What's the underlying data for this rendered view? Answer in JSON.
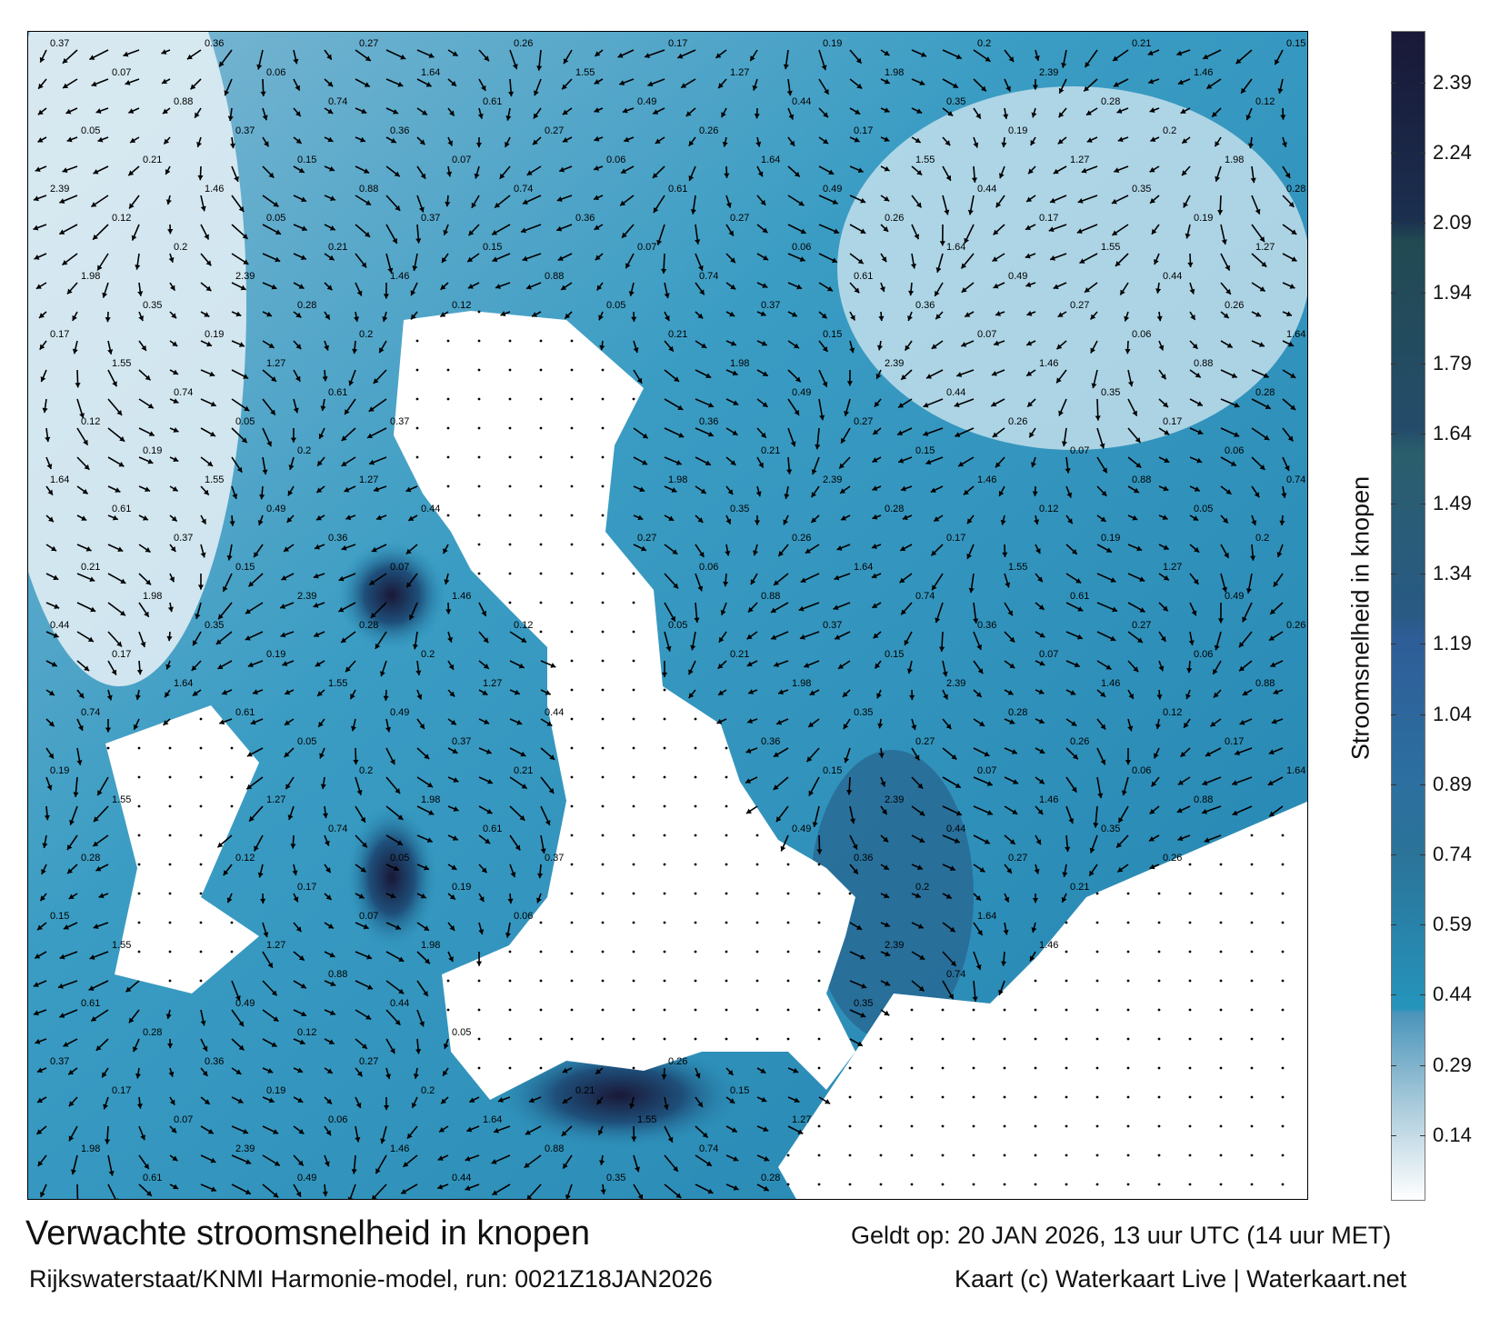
{
  "map": {
    "variable": "stroomsnelheid",
    "unit": "knopen",
    "colors": {
      "land": "#ffffff",
      "low": "#f2f7fa",
      "mid": "#2a90b8",
      "high": "#1a1838"
    },
    "sample_labels": [
      "0.37",
      "0.36",
      "0.27",
      "0.26",
      "0.17",
      "0.19",
      "0.2",
      "0.21",
      "0.15",
      "0.07",
      "0.06",
      "1.64",
      "1.55",
      "1.27",
      "1.98",
      "2.39",
      "1.46",
      "0.88",
      "0.74",
      "0.61",
      "0.49",
      "0.44",
      "0.35",
      "0.28",
      "0.12",
      "0.05"
    ]
  },
  "colorbar": {
    "title": "Stroomsnelheid in knopen",
    "ticks": [
      "2.39",
      "2.24",
      "2.09",
      "1.94",
      "1.79",
      "1.64",
      "1.49",
      "1.34",
      "1.19",
      "1.04",
      "0.89",
      "0.74",
      "0.59",
      "0.44",
      "0.29",
      "0.14"
    ],
    "range": [
      0,
      2.5
    ],
    "stops": [
      {
        "v": 0.0,
        "c": "#ffffff"
      },
      {
        "v": 0.2,
        "c": "#aacbdb"
      },
      {
        "v": 0.4,
        "c": "#4a94ba"
      },
      {
        "v": 0.41,
        "c": "#2594bb"
      },
      {
        "v": 0.74,
        "c": "#2b7399"
      },
      {
        "v": 0.9,
        "c": "#2c6fa0"
      },
      {
        "v": 1.2,
        "c": "#2e5d97"
      },
      {
        "v": 1.25,
        "c": "#285a84"
      },
      {
        "v": 1.6,
        "c": "#2a5e6c"
      },
      {
        "v": 1.65,
        "c": "#244c6a"
      },
      {
        "v": 2.05,
        "c": "#224a52"
      },
      {
        "v": 2.1,
        "c": "#1b2f4e"
      },
      {
        "v": 2.5,
        "c": "#1a1838"
      }
    ]
  },
  "footer": {
    "title": "Verwachte stroomsnelheid in knopen",
    "valid": "Geldt op: 20 JAN 2026, 13 uur UTC (14 uur MET)",
    "source": "Rijkswaterstaat/KNMI Harmonie-model, run: 0021Z18JAN2026",
    "credit": "Kaart (c) Waterkaart Live | Waterkaart.net"
  }
}
